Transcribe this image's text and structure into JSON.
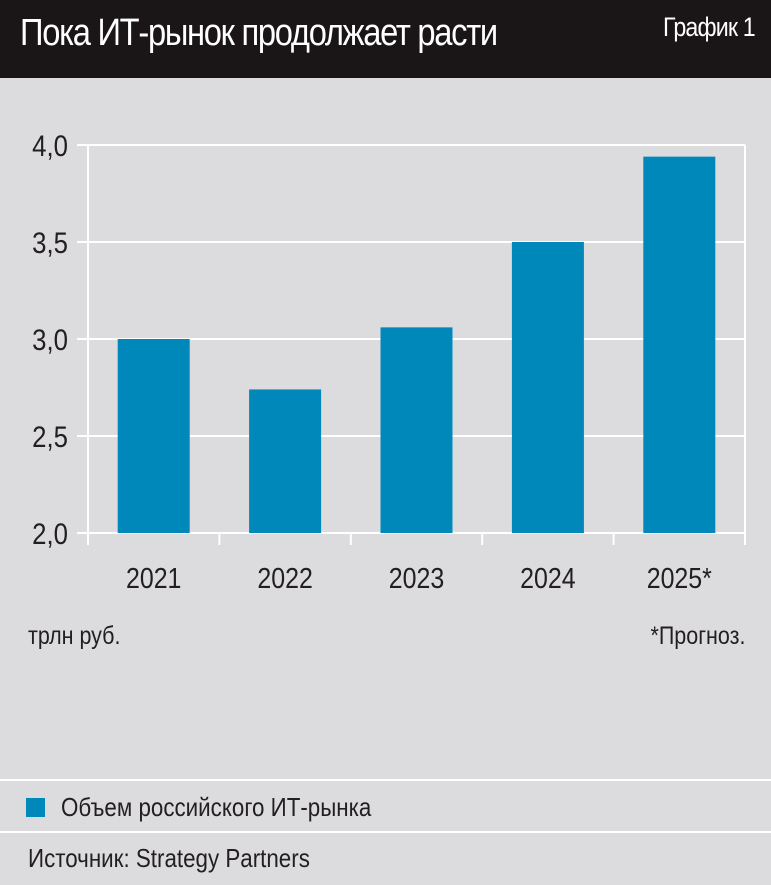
{
  "header": {
    "title": "Пока ИТ-рынок продолжает расти",
    "chart_number": "График 1"
  },
  "notes": {
    "unit": "трлн руб.",
    "forecast_note": "*Прогноз."
  },
  "legend": {
    "label": "Объем российского ИТ-рынка",
    "color": "#0088bb"
  },
  "source": "Источник: Strategy Partners",
  "colors": {
    "header_bg": "#1a1617",
    "background": "#dcdcde",
    "bar": "#0088bb",
    "grid": "#ffffff"
  },
  "chart_data": {
    "type": "bar",
    "title": "Пока ИТ-рынок продолжает расти",
    "categories": [
      "2021",
      "2022",
      "2023",
      "2024",
      "2025*"
    ],
    "series": [
      {
        "name": "Объем российского ИТ-рынка",
        "values": [
          3.0,
          2.74,
          3.06,
          3.5,
          3.94
        ]
      }
    ],
    "xlabel": "",
    "ylabel": "трлн руб.",
    "ylim": [
      2.0,
      4.0
    ],
    "yticks": [
      2.0,
      2.5,
      3.0,
      3.5,
      4.0
    ],
    "ytick_labels": [
      "2,0",
      "2,5",
      "3,0",
      "3,5",
      "4,0"
    ],
    "grid": true,
    "legend_position": "bottom-left",
    "annotations": [
      "*Прогноз."
    ]
  }
}
